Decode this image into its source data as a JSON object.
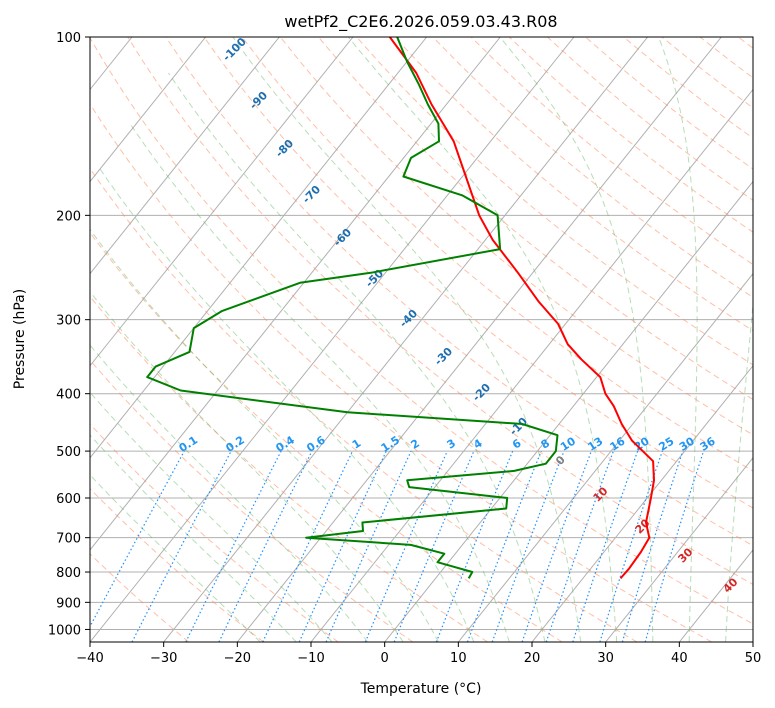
{
  "chart_data": {
    "type": "line",
    "title": "wetPf2_C2E6.2026.059.03.43.R08",
    "xlabel": "Temperature (°C)",
    "ylabel": "Pressure (hPa)",
    "xlim": [
      -40,
      50
    ],
    "ylim": [
      1050,
      100
    ],
    "yscale": "log",
    "x_ticks": [
      -40,
      -30,
      -20,
      -10,
      0,
      10,
      20,
      30,
      40,
      50
    ],
    "y_ticks": [
      1000,
      900,
      800,
      700,
      600,
      500,
      400,
      300,
      200,
      100
    ],
    "grid": true,
    "skew": "skew-T log-p",
    "series": [
      {
        "name": "",
        "color": "#ff0000",
        "values": [
          {
            "p": 820,
            "t": 25.1
          },
          {
            "p": 790,
            "t": 25.2
          },
          {
            "p": 740,
            "t": 25.0
          },
          {
            "p": 700,
            "t": 24.6
          },
          {
            "p": 660,
            "t": 22.5
          },
          {
            "p": 600,
            "t": 20.5
          },
          {
            "p": 560,
            "t": 19.0
          },
          {
            "p": 520,
            "t": 16.8
          },
          {
            "p": 480,
            "t": 11.7
          },
          {
            "p": 450,
            "t": 8.5
          },
          {
            "p": 420,
            "t": 5.5
          },
          {
            "p": 400,
            "t": 3.0
          },
          {
            "p": 375,
            "t": 0.5
          },
          {
            "p": 350,
            "t": -4.0
          },
          {
            "p": 330,
            "t": -7.5
          },
          {
            "p": 305,
            "t": -11.0
          },
          {
            "p": 280,
            "t": -16.0
          },
          {
            "p": 250,
            "t": -22.0
          },
          {
            "p": 220,
            "t": -29.0
          },
          {
            "p": 200,
            "t": -33.5
          },
          {
            "p": 170,
            "t": -40.0
          },
          {
            "p": 150,
            "t": -45.0
          },
          {
            "p": 130,
            "t": -52.0
          },
          {
            "p": 115,
            "t": -57.5
          },
          {
            "p": 100,
            "t": -65.0
          }
        ]
      },
      {
        "name": "",
        "color": "#008000",
        "values": [
          {
            "p": 820,
            "t": 4.5
          },
          {
            "p": 800,
            "t": 4.3
          },
          {
            "p": 770,
            "t": -1.5
          },
          {
            "p": 745,
            "t": -1.5
          },
          {
            "p": 720,
            "t": -7.0
          },
          {
            "p": 700,
            "t": -22.0
          },
          {
            "p": 682,
            "t": -15.0
          },
          {
            "p": 660,
            "t": -16.0
          },
          {
            "p": 625,
            "t": 2.0
          },
          {
            "p": 600,
            "t": 1.0
          },
          {
            "p": 575,
            "t": -13.5
          },
          {
            "p": 560,
            "t": -14.5
          },
          {
            "p": 540,
            "t": -1.0
          },
          {
            "p": 525,
            "t": 2.5
          },
          {
            "p": 500,
            "t": 2.5
          },
          {
            "p": 470,
            "t": 1.0
          },
          {
            "p": 450,
            "t": -5.0
          },
          {
            "p": 430,
            "t": -30.0
          },
          {
            "p": 395,
            "t": -55.0
          },
          {
            "p": 375,
            "t": -61.0
          },
          {
            "p": 360,
            "t": -61.0
          },
          {
            "p": 340,
            "t": -58.0
          },
          {
            "p": 310,
            "t": -60.0
          },
          {
            "p": 290,
            "t": -58.0
          },
          {
            "p": 260,
            "t": -50.5
          },
          {
            "p": 250,
            "t": -42.0
          },
          {
            "p": 228,
            "t": -27.0
          },
          {
            "p": 200,
            "t": -31.0
          },
          {
            "p": 185,
            "t": -38.0
          },
          {
            "p": 172,
            "t": -48.0
          },
          {
            "p": 160,
            "t": -49.0
          },
          {
            "p": 150,
            "t": -47.0
          },
          {
            "p": 140,
            "t": -49.0
          },
          {
            "p": 130,
            "t": -52.5
          },
          {
            "p": 120,
            "t": -56.0
          },
          {
            "p": 110,
            "t": -60.0
          },
          {
            "p": 100,
            "t": -64.0
          }
        ]
      }
    ],
    "dry_adiabat_labels": [
      "-100",
      "-90",
      "-80",
      "-70",
      "-60",
      "-50",
      "-40",
      "-30",
      "-20",
      "-10",
      "0",
      "10",
      "20",
      "30",
      "40"
    ],
    "mixing_ratio_labels": [
      "0.1",
      "0.2",
      "0.4",
      "0.6",
      "1",
      "1.5",
      "2",
      "3",
      "4",
      "6",
      "8",
      "10",
      "13",
      "16",
      "20",
      "25",
      "30",
      "36"
    ],
    "colors": {
      "temperature": "#ff0000",
      "dewpoint": "#008000",
      "isotherm": "#b0b0b0",
      "dry_adiabat": "#ff7f50",
      "moist_adiabat": "#5fb35f",
      "mixing_ratio": "#1e90ff",
      "label_blue": "#1f6fb0",
      "label_red": "#d62728",
      "label_mix": "#2196f3",
      "label_zero": "#808080"
    }
  }
}
